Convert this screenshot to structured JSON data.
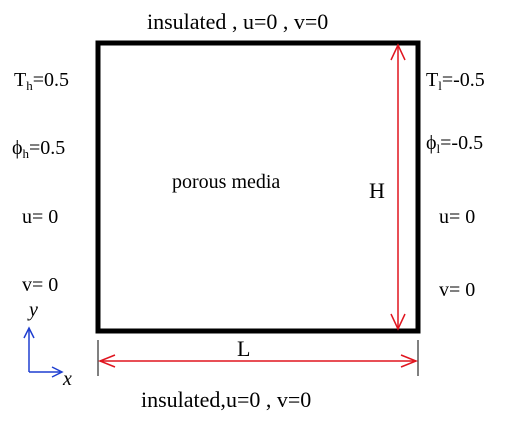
{
  "boundary": {
    "top": {
      "text": "insulated",
      "sep1": " , ",
      "u": "u=0",
      "sep2": " , ",
      "v": "v=0"
    },
    "bottom": {
      "text": "insulated,",
      "u": "u=0",
      "sep2": " , ",
      "v": "v=0"
    },
    "left": {
      "T_sym": "T",
      "T_sub": "h",
      "T_val": "=0.5",
      "phi_sym": "ϕ",
      "phi_sub": "h",
      "phi_val": "=0.5",
      "u": "u= 0",
      "v": "v= 0"
    },
    "right": {
      "T_sym": "T",
      "T_sub": "l",
      "T_val": "=-0.5",
      "phi_sym": "ϕ",
      "phi_sub": "l",
      "phi_val": "=-0.5",
      "u": "u= 0",
      "v": "v= 0"
    }
  },
  "domain": {
    "label": "porous media"
  },
  "dimensions": {
    "height": "H",
    "length": "L"
  },
  "axes": {
    "y": "y",
    "x": "x"
  },
  "colors": {
    "walls": "#000000",
    "dimension_arrows": "#e0151f",
    "axes": "#1f3fd0"
  }
}
